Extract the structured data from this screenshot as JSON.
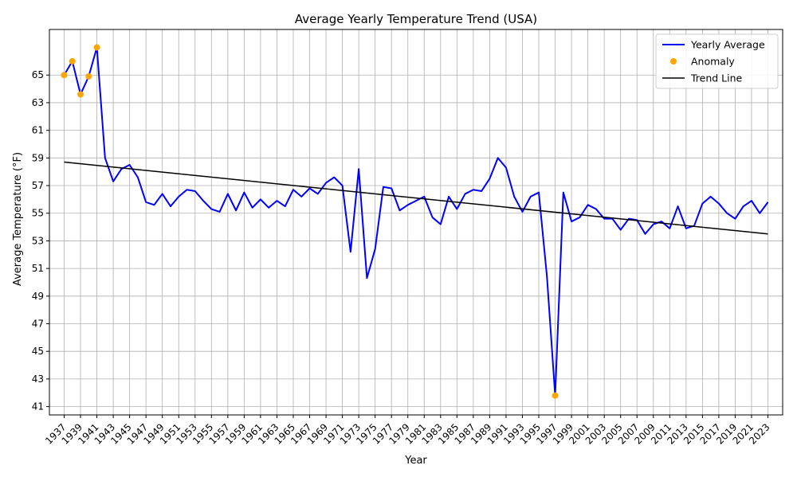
{
  "chart_data": {
    "type": "line",
    "title": "Average Yearly Temperature Trend (USA)",
    "xlabel": "Year",
    "ylabel": "Average Temperature (°F)",
    "xlim": [
      1935.2,
      2024.8
    ],
    "ylim": [
      40.4,
      68.3
    ],
    "grid": true,
    "legend_position": "top-right",
    "x_ticks": [
      1937,
      1939,
      1941,
      1943,
      1945,
      1947,
      1949,
      1951,
      1953,
      1955,
      1957,
      1959,
      1961,
      1963,
      1965,
      1967,
      1969,
      1971,
      1973,
      1975,
      1977,
      1979,
      1981,
      1983,
      1985,
      1987,
      1989,
      1991,
      1993,
      1995,
      1997,
      1999,
      2001,
      2003,
      2005,
      2007,
      2009,
      2011,
      2013,
      2015,
      2017,
      2019,
      2021,
      2023
    ],
    "y_ticks": [
      41,
      43,
      45,
      47,
      49,
      51,
      53,
      55,
      57,
      59,
      61,
      63,
      65
    ],
    "series": [
      {
        "name": "Yearly Average",
        "kind": "line",
        "color": "#0000ff",
        "x": [
          1937,
          1938,
          1939,
          1940,
          1941,
          1942,
          1943,
          1944,
          1945,
          1946,
          1947,
          1948,
          1949,
          1950,
          1951,
          1952,
          1953,
          1954,
          1955,
          1956,
          1957,
          1958,
          1959,
          1960,
          1961,
          1962,
          1963,
          1964,
          1965,
          1966,
          1967,
          1968,
          1969,
          1970,
          1971,
          1972,
          1973,
          1974,
          1975,
          1976,
          1977,
          1978,
          1979,
          1980,
          1981,
          1982,
          1983,
          1984,
          1985,
          1986,
          1987,
          1988,
          1989,
          1990,
          1991,
          1992,
          1993,
          1994,
          1995,
          1996,
          1997,
          1998,
          1999,
          2000,
          2001,
          2002,
          2003,
          2004,
          2005,
          2006,
          2007,
          2008,
          2009,
          2010,
          2011,
          2012,
          2013,
          2014,
          2015,
          2016,
          2017,
          2018,
          2019,
          2020,
          2021,
          2022,
          2023
        ],
        "y": [
          65.0,
          66.0,
          63.6,
          64.9,
          67.0,
          59.0,
          57.3,
          58.2,
          58.5,
          57.6,
          55.8,
          55.6,
          56.4,
          55.5,
          56.2,
          56.7,
          56.6,
          55.9,
          55.3,
          55.1,
          56.4,
          55.2,
          56.5,
          55.4,
          56.0,
          55.4,
          55.9,
          55.5,
          56.7,
          56.2,
          56.8,
          56.4,
          57.2,
          57.6,
          57.0,
          52.2,
          58.2,
          50.3,
          52.4,
          56.9,
          56.8,
          55.2,
          55.6,
          55.9,
          56.2,
          54.7,
          54.2,
          56.2,
          55.3,
          56.4,
          56.7,
          56.6,
          57.5,
          59.0,
          58.3,
          56.2,
          55.1,
          56.2,
          56.5,
          50.4,
          41.8,
          56.5,
          54.4,
          54.7,
          55.6,
          55.3,
          54.6,
          54.6,
          53.8,
          54.6,
          54.5,
          53.5,
          54.2,
          54.4,
          53.9,
          55.5,
          53.9,
          54.1,
          55.7,
          56.2,
          55.7,
          55.0,
          54.6,
          55.5,
          55.9,
          55.0,
          55.8
        ]
      },
      {
        "name": "Anomaly",
        "kind": "scatter",
        "color": "#ffa500",
        "x": [
          1937,
          1938,
          1939,
          1940,
          1941,
          1997
        ],
        "y": [
          65.0,
          66.0,
          63.6,
          64.9,
          67.0,
          41.8
        ]
      },
      {
        "name": "Trend Line",
        "kind": "line",
        "color": "#000000",
        "x": [
          1937,
          2023
        ],
        "y": [
          58.7,
          53.5
        ]
      }
    ]
  }
}
